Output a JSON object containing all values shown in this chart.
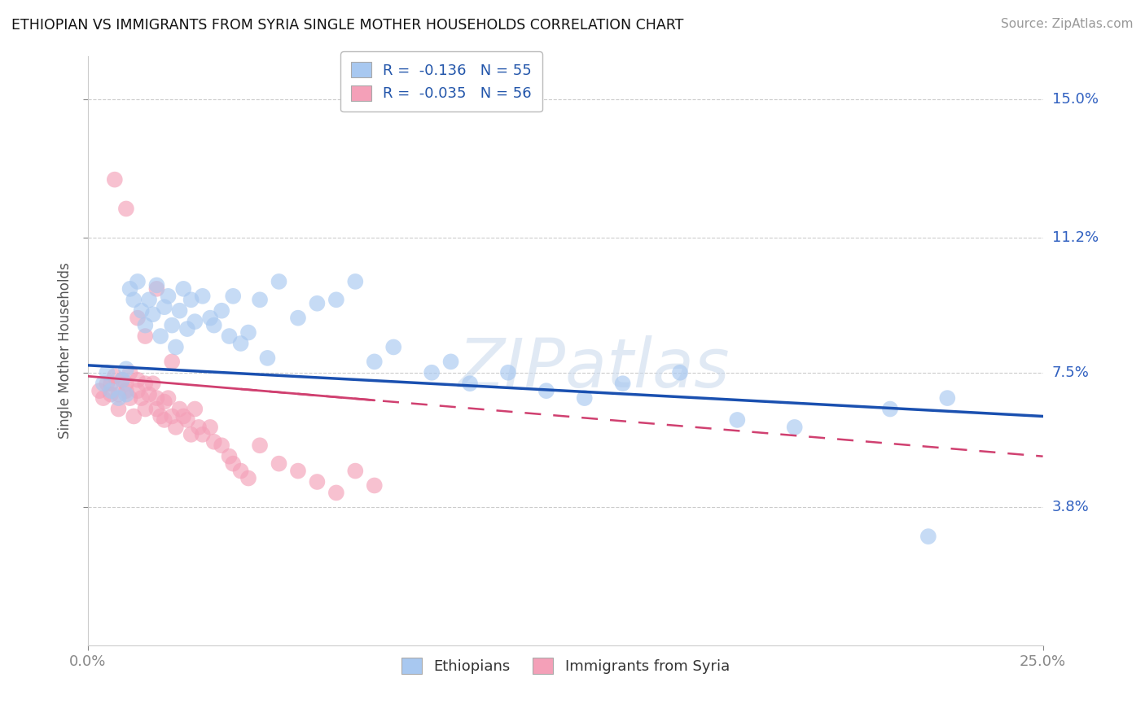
{
  "title": "ETHIOPIAN VS IMMIGRANTS FROM SYRIA SINGLE MOTHER HOUSEHOLDS CORRELATION CHART",
  "source": "Source: ZipAtlas.com",
  "ylabel": "Single Mother Households",
  "y_ticks": [
    3.8,
    7.5,
    11.2,
    15.0
  ],
  "x_min": 0.0,
  "x_max": 0.25,
  "y_min": 0.0,
  "y_max": 0.162,
  "blue_R": -0.136,
  "blue_N": 55,
  "pink_R": -0.035,
  "pink_N": 56,
  "blue_color": "#a8c8f0",
  "pink_color": "#f4a0b8",
  "blue_line_color": "#1a50b0",
  "pink_line_color": "#d04070",
  "watermark": "ZIPatlas",
  "legend_label_blue": "Ethiopians",
  "legend_label_pink": "Immigrants from Syria",
  "blue_scatter_x": [
    0.004,
    0.005,
    0.006,
    0.008,
    0.009,
    0.01,
    0.01,
    0.011,
    0.012,
    0.013,
    0.014,
    0.015,
    0.016,
    0.017,
    0.018,
    0.019,
    0.02,
    0.021,
    0.022,
    0.023,
    0.024,
    0.025,
    0.026,
    0.027,
    0.028,
    0.03,
    0.032,
    0.033,
    0.035,
    0.037,
    0.038,
    0.04,
    0.042,
    0.045,
    0.047,
    0.05,
    0.055,
    0.06,
    0.065,
    0.07,
    0.075,
    0.08,
    0.09,
    0.095,
    0.1,
    0.11,
    0.12,
    0.13,
    0.14,
    0.155,
    0.17,
    0.185,
    0.21,
    0.22,
    0.225
  ],
  "blue_scatter_y": [
    0.072,
    0.075,
    0.07,
    0.068,
    0.073,
    0.076,
    0.069,
    0.098,
    0.095,
    0.1,
    0.092,
    0.088,
    0.095,
    0.091,
    0.099,
    0.085,
    0.093,
    0.096,
    0.088,
    0.082,
    0.092,
    0.098,
    0.087,
    0.095,
    0.089,
    0.096,
    0.09,
    0.088,
    0.092,
    0.085,
    0.096,
    0.083,
    0.086,
    0.095,
    0.079,
    0.1,
    0.09,
    0.094,
    0.095,
    0.1,
    0.078,
    0.082,
    0.075,
    0.078,
    0.072,
    0.075,
    0.07,
    0.068,
    0.072,
    0.075,
    0.062,
    0.06,
    0.065,
    0.03,
    0.068
  ],
  "pink_scatter_x": [
    0.003,
    0.004,
    0.005,
    0.006,
    0.006,
    0.007,
    0.008,
    0.008,
    0.009,
    0.01,
    0.01,
    0.011,
    0.011,
    0.012,
    0.013,
    0.013,
    0.014,
    0.015,
    0.015,
    0.016,
    0.017,
    0.018,
    0.018,
    0.019,
    0.02,
    0.02,
    0.021,
    0.022,
    0.023,
    0.024,
    0.025,
    0.026,
    0.027,
    0.028,
    0.029,
    0.03,
    0.032,
    0.033,
    0.035,
    0.037,
    0.038,
    0.04,
    0.042,
    0.045,
    0.05,
    0.055,
    0.06,
    0.065,
    0.07,
    0.075,
    0.007,
    0.01,
    0.013,
    0.015,
    0.018,
    0.022
  ],
  "pink_scatter_y": [
    0.07,
    0.068,
    0.072,
    0.069,
    0.072,
    0.074,
    0.069,
    0.065,
    0.073,
    0.072,
    0.07,
    0.075,
    0.068,
    0.063,
    0.073,
    0.07,
    0.068,
    0.065,
    0.072,
    0.069,
    0.072,
    0.065,
    0.068,
    0.063,
    0.067,
    0.062,
    0.068,
    0.063,
    0.06,
    0.065,
    0.063,
    0.062,
    0.058,
    0.065,
    0.06,
    0.058,
    0.06,
    0.056,
    0.055,
    0.052,
    0.05,
    0.048,
    0.046,
    0.055,
    0.05,
    0.048,
    0.045,
    0.042,
    0.048,
    0.044,
    0.128,
    0.12,
    0.09,
    0.085,
    0.098,
    0.078
  ]
}
